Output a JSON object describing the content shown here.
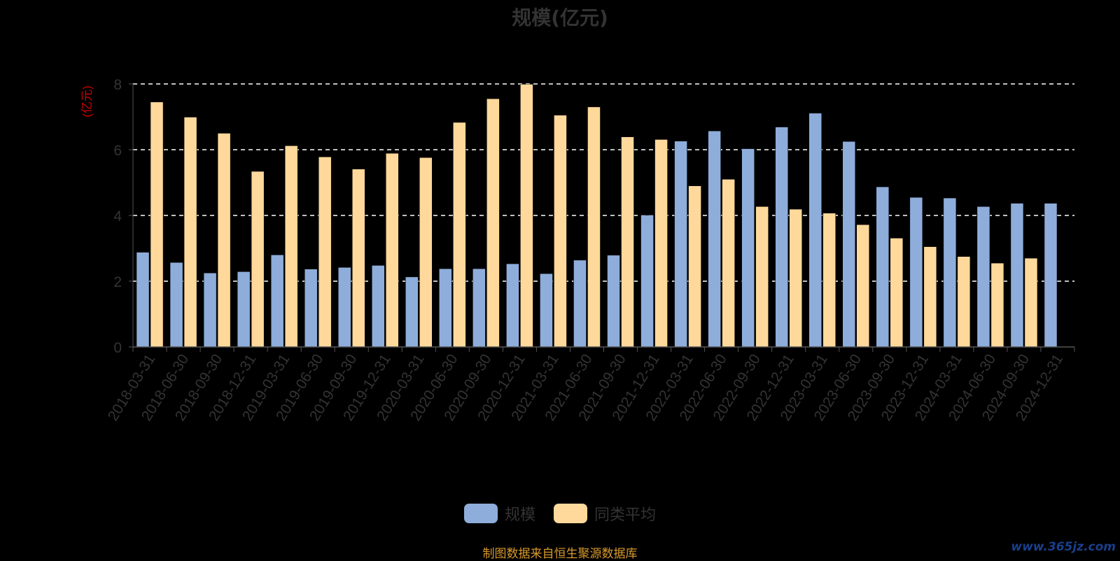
{
  "title": "规模(亿元)",
  "source_note": "制图数据来自恒生聚源数据库",
  "watermark": "www.365jz.com",
  "colors": {
    "series_scale": "#8eadda",
    "series_avg": "#ffd99b",
    "axis": "#555555",
    "grid": "#ffffff",
    "unit": "#cc0000"
  },
  "chart_data": {
    "type": "bar",
    "title": "规模(亿元)",
    "ylabel": "(亿元)",
    "ylim": [
      0,
      8
    ],
    "yticks": [
      0,
      2,
      4,
      6,
      8
    ],
    "grid": "horizontal-dashed",
    "legend_position": "bottom-center",
    "categories": [
      "2018-03-31",
      "2018-06-30",
      "2018-09-30",
      "2018-12-31",
      "2019-03-31",
      "2019-06-30",
      "2019-09-30",
      "2019-12-31",
      "2020-03-31",
      "2020-06-30",
      "2020-09-30",
      "2020-12-31",
      "2021-03-31",
      "2021-06-30",
      "2021-09-30",
      "2021-12-31",
      "2022-03-31",
      "2022-06-30",
      "2022-09-30",
      "2022-12-31",
      "2023-03-31",
      "2023-06-30",
      "2023-09-30",
      "2023-12-31",
      "2024-03-31",
      "2024-06-30",
      "2024-09-30",
      "2024-12-31"
    ],
    "series": [
      {
        "name": "规模",
        "color": "#8eadda",
        "values": [
          2.88,
          2.57,
          2.25,
          2.29,
          2.8,
          2.37,
          2.42,
          2.48,
          2.13,
          2.38,
          2.38,
          2.53,
          2.23,
          2.64,
          2.79,
          4.01,
          6.26,
          6.57,
          6.03,
          6.69,
          7.11,
          6.25,
          4.87,
          4.55,
          4.53,
          4.27,
          4.37,
          4.37
        ]
      },
      {
        "name": "同类平均",
        "color": "#ffd99b",
        "values": [
          7.45,
          6.99,
          6.5,
          5.34,
          6.12,
          5.78,
          5.41,
          5.89,
          5.76,
          6.83,
          7.55,
          7.99,
          7.05,
          7.3,
          6.39,
          6.31,
          4.9,
          5.1,
          4.27,
          4.19,
          4.07,
          3.72,
          3.31,
          3.05,
          2.75,
          2.55,
          2.7,
          null
        ]
      }
    ]
  }
}
